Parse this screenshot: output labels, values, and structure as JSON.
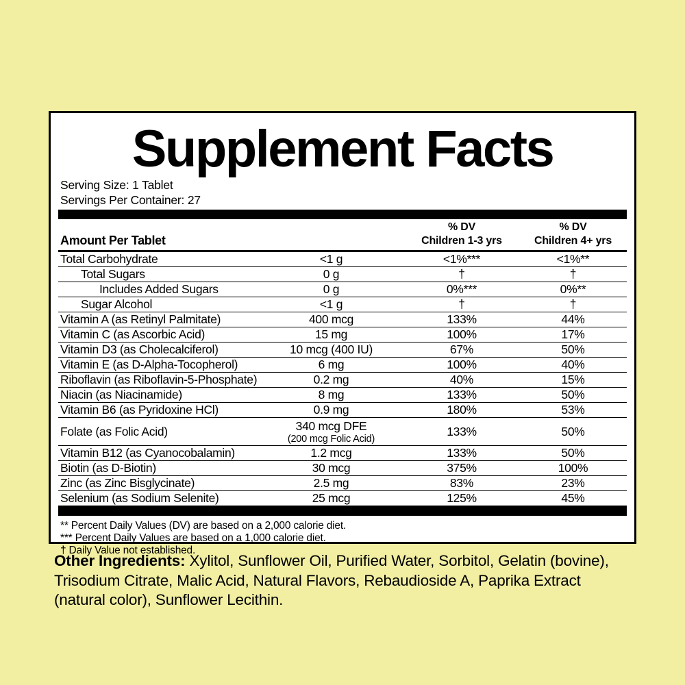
{
  "colors": {
    "background": "#f2efa3",
    "panel_background": "#ffffff",
    "text_and_rules": "#000000"
  },
  "panel": {
    "title": "Supplement Facts",
    "serving_size": "Serving Size: 1 Tablet",
    "servings_per_container": "Servings Per Container: 27"
  },
  "table": {
    "header": {
      "amount_col": "Amount Per Tablet",
      "dv1_line1": "% DV",
      "dv1_line2": "Children 1-3 yrs",
      "dv2_line1": "% DV",
      "dv2_line2": "Children 4+ yrs"
    },
    "rows": [
      {
        "name": "Total Carbohydrate",
        "indent": 0,
        "amount": "<1 g",
        "dv1": "<1%***",
        "dv2": "<1%**"
      },
      {
        "name": "Total Sugars",
        "indent": 1,
        "amount": "0 g",
        "dv1": "†",
        "dv2": "†"
      },
      {
        "name": "Includes Added Sugars",
        "indent": 2,
        "amount": "0 g",
        "dv1": "0%***",
        "dv2": "0%**"
      },
      {
        "name": "Sugar Alcohol",
        "indent": 1,
        "amount": "<1 g",
        "dv1": "†",
        "dv2": "†"
      },
      {
        "name": "Vitamin A (as Retinyl Palmitate)",
        "indent": 0,
        "amount": "400 mcg",
        "dv1": "133%",
        "dv2": "44%"
      },
      {
        "name": "Vitamin C (as Ascorbic Acid)",
        "indent": 0,
        "amount": "15 mg",
        "dv1": "100%",
        "dv2": "17%"
      },
      {
        "name": "Vitamin D3 (as Cholecalciferol)",
        "indent": 0,
        "amount": "10 mcg (400 IU)",
        "dv1": "67%",
        "dv2": "50%"
      },
      {
        "name": "Vitamin E (as D-Alpha-Tocopherol)",
        "indent": 0,
        "amount": "6 mg",
        "dv1": "100%",
        "dv2": "40%"
      },
      {
        "name": "Riboflavin (as Riboflavin-5-Phosphate)",
        "indent": 0,
        "amount": "0.2 mg",
        "dv1": "40%",
        "dv2": "15%"
      },
      {
        "name": "Niacin (as Niacinamide)",
        "indent": 0,
        "amount": "8 mg",
        "dv1": "133%",
        "dv2": "50%"
      },
      {
        "name": "Vitamin B6 (as Pyridoxine HCl)",
        "indent": 0,
        "amount": "0.9 mg",
        "dv1": "180%",
        "dv2": "53%"
      },
      {
        "name": "Folate (as Folic Acid)",
        "indent": 0,
        "amount": "340 mcg DFE",
        "amount_sub": "(200 mcg Folic Acid)",
        "dv1": "133%",
        "dv2": "50%"
      },
      {
        "name": "Vitamin B12 (as Cyanocobalamin)",
        "indent": 0,
        "amount": "1.2 mcg",
        "dv1": "133%",
        "dv2": "50%"
      },
      {
        "name": "Biotin (as D-Biotin)",
        "indent": 0,
        "amount": "30 mcg",
        "dv1": "375%",
        "dv2": "100%"
      },
      {
        "name": "Zinc (as Zinc Bisglycinate)",
        "indent": 0,
        "amount": "2.5 mg",
        "dv1": "83%",
        "dv2": "23%"
      },
      {
        "name": "Selenium (as Sodium Selenite)",
        "indent": 0,
        "amount": "25 mcg",
        "dv1": "125%",
        "dv2": "45%"
      }
    ]
  },
  "footnotes": [
    "** Percent Daily Values (DV) are based on a 2,000 calorie diet.",
    "*** Percent Daily Values are based on a 1,000 calorie diet.",
    "† Daily Value not established."
  ],
  "other_ingredients": {
    "label": "Other Ingredients:",
    "text": " Xylitol, Sunflower Oil, Purified Water, Sorbitol, Gelatin (bovine), Trisodium Citrate, Malic Acid, Natural Flavors, Rebaudioside A, Paprika Extract (natural color), Sunflower Lecithin."
  }
}
